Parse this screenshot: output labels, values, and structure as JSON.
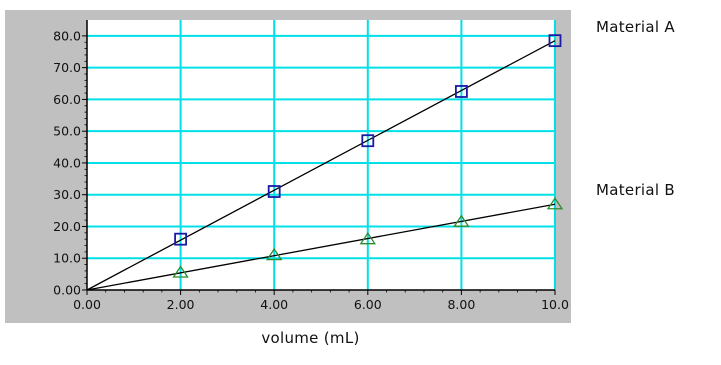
{
  "chart_data": {
    "type": "scatter",
    "title": "",
    "xlabel": "volume (mL)",
    "ylabel": "",
    "xlim": [
      0,
      10
    ],
    "ylim": [
      0,
      85
    ],
    "grid": true,
    "xticks": [
      0,
      2,
      4,
      6,
      8,
      10
    ],
    "xtick_labels": [
      "0.00",
      "2.00",
      "4.00",
      "6.00",
      "8.00",
      "10.0"
    ],
    "yticks": [
      0,
      10,
      20,
      30,
      40,
      50,
      60,
      70,
      80
    ],
    "ytick_labels": [
      "0.00",
      "10.0",
      "20.0",
      "30.0",
      "40.0",
      "50.0",
      "60.0",
      "70.0",
      "80.0"
    ],
    "series": [
      {
        "name": "Material A",
        "marker": "square",
        "color": "#1a1aa6",
        "x": [
          2,
          4,
          6,
          8,
          10
        ],
        "y": [
          16.0,
          31.0,
          47.0,
          62.5,
          78.5
        ],
        "fit_line": [
          [
            0,
            0
          ],
          [
            10,
            78.5
          ]
        ]
      },
      {
        "name": "Material B",
        "marker": "triangle",
        "color": "#2e8b2e",
        "x": [
          2,
          4,
          6,
          8,
          10
        ],
        "y": [
          5.5,
          11.0,
          16.0,
          21.5,
          27.0
        ],
        "fit_line": [
          [
            0,
            0
          ],
          [
            10,
            27.0
          ]
        ]
      }
    ],
    "colors": {
      "frame_background": "#c0c0c0",
      "plot_background": "#ffffff",
      "grid": "#00e0e8",
      "fit_line": "#000000"
    }
  }
}
